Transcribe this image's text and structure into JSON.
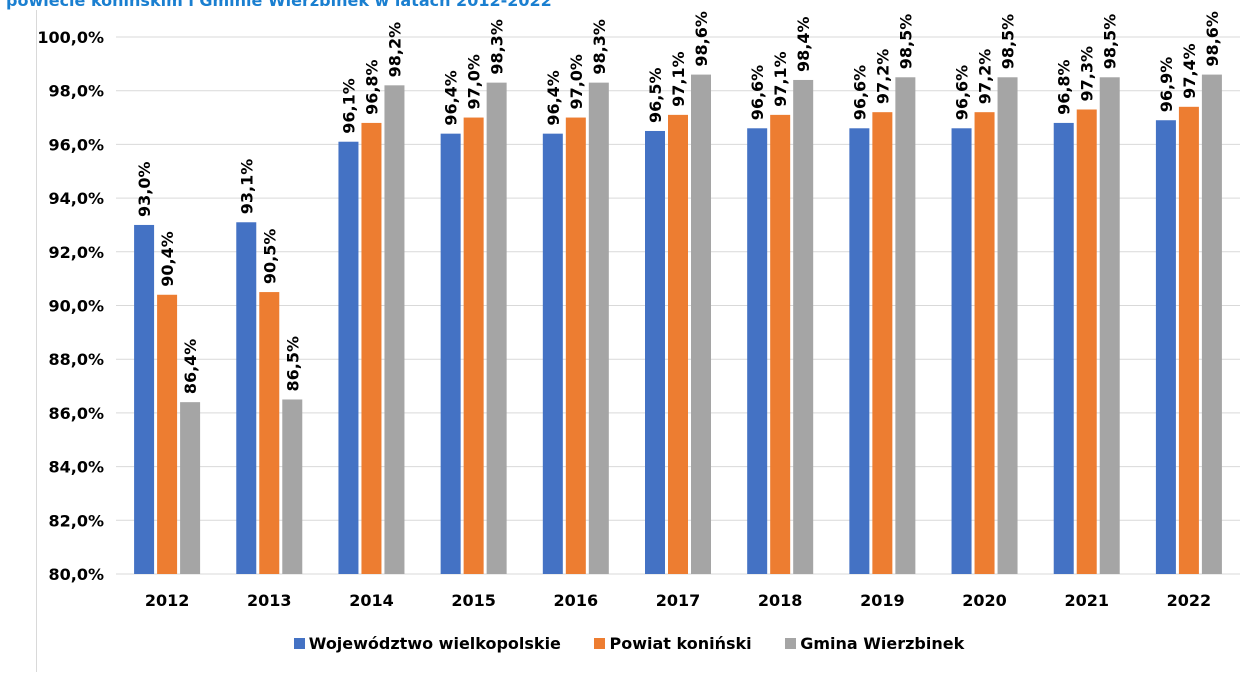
{
  "header": {
    "title": "powiecie konińskim i Gminie Wierzbinek w latach 2012-2022"
  },
  "colors": {
    "series": [
      "#4472c4",
      "#ed7d31",
      "#a5a5a5"
    ],
    "grid": "#d9d9d9"
  },
  "chart_data": {
    "type": "bar",
    "title": "",
    "xlabel": "",
    "ylabel": "",
    "categories": [
      "2012",
      "2013",
      "2014",
      "2015",
      "2016",
      "2017",
      "2018",
      "2019",
      "2020",
      "2021",
      "2022"
    ],
    "series": [
      {
        "name": "Województwo wielkopolskie",
        "values": [
          93.0,
          93.1,
          96.1,
          96.4,
          96.4,
          96.5,
          96.6,
          96.6,
          96.6,
          96.8,
          96.9
        ],
        "labels": [
          "93,0%",
          "93,1%",
          "96,1%",
          "96,4%",
          "96,4%",
          "96,5%",
          "96,6%",
          "96,6%",
          "96,6%",
          "96,8%",
          "96,9%"
        ]
      },
      {
        "name": "Powiat koniński",
        "values": [
          90.4,
          90.5,
          96.8,
          97.0,
          97.0,
          97.1,
          97.1,
          97.2,
          97.2,
          97.3,
          97.4
        ],
        "labels": [
          "90,4%",
          "90,5%",
          "96,8%",
          "97,0%",
          "97,0%",
          "97,1%",
          "97,1%",
          "97,2%",
          "97,2%",
          "97,3%",
          "97,4%"
        ]
      },
      {
        "name": "Gmina Wierzbinek",
        "values": [
          86.4,
          86.5,
          98.2,
          98.3,
          98.3,
          98.6,
          98.4,
          98.5,
          98.5,
          98.5,
          98.6
        ],
        "labels": [
          "86,4%",
          "86,5%",
          "98,2%",
          "98,3%",
          "98,3%",
          "98,6%",
          "98,4%",
          "98,5%",
          "98,5%",
          "98,5%",
          "98,6%"
        ]
      }
    ],
    "ylim": [
      80,
      100
    ],
    "yticks": [
      {
        "value": 80,
        "label": "80,0%"
      },
      {
        "value": 82,
        "label": "82,0%"
      },
      {
        "value": 84,
        "label": "84,0%"
      },
      {
        "value": 86,
        "label": "86,0%"
      },
      {
        "value": 88,
        "label": "88,0%"
      },
      {
        "value": 90,
        "label": "90,0%"
      },
      {
        "value": 92,
        "label": "92,0%"
      },
      {
        "value": 94,
        "label": "94,0%"
      },
      {
        "value": 96,
        "label": "96,0%"
      },
      {
        "value": 98,
        "label": "98,0%"
      },
      {
        "value": 100,
        "label": "100,0%"
      }
    ],
    "grid": true,
    "legend_position": "bottom"
  }
}
